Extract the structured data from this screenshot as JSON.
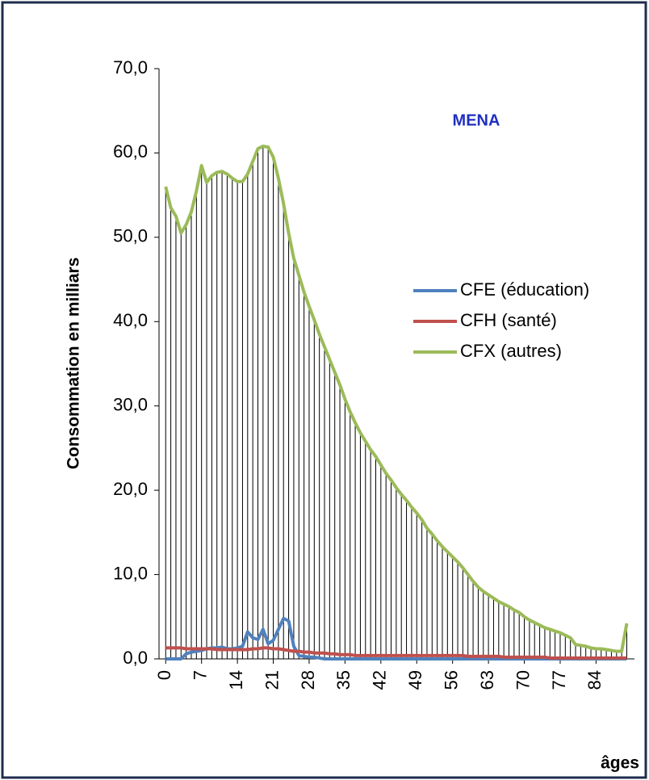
{
  "chart_data": {
    "type": "line",
    "title": "MENA",
    "y_label": "Consommation en milliars",
    "x_label": "âges",
    "x": [
      0,
      1,
      2,
      3,
      4,
      5,
      6,
      7,
      8,
      9,
      10,
      11,
      12,
      13,
      14,
      15,
      16,
      17,
      18,
      19,
      20,
      21,
      22,
      23,
      24,
      25,
      26,
      27,
      28,
      29,
      30,
      31,
      32,
      33,
      34,
      35,
      36,
      37,
      38,
      39,
      40,
      41,
      42,
      43,
      44,
      45,
      46,
      47,
      48,
      49,
      50,
      51,
      52,
      53,
      54,
      55,
      56,
      57,
      58,
      59,
      60,
      61,
      62,
      63,
      64,
      65,
      66,
      67,
      68,
      69,
      70,
      71,
      72,
      73,
      74,
      75,
      76,
      77,
      78,
      79,
      80,
      81,
      82,
      83,
      84,
      85,
      86,
      87,
      88,
      89,
      90
    ],
    "xlim": [
      -1.3,
      91.5
    ],
    "xticks": [
      0,
      7,
      14,
      21,
      28,
      35,
      42,
      49,
      56,
      63,
      70,
      77,
      84
    ],
    "ylim": [
      0,
      70
    ],
    "yticks": [
      {
        "value": 0,
        "label": "0,0"
      },
      {
        "value": 10,
        "label": "10,0"
      },
      {
        "value": 20,
        "label": "20,0"
      },
      {
        "value": 30,
        "label": "30,0"
      },
      {
        "value": 40,
        "label": "40,0"
      },
      {
        "value": 50,
        "label": "50,0"
      },
      {
        "value": 60,
        "label": "60,0"
      },
      {
        "value": 70,
        "label": "70,0"
      }
    ],
    "drop_lines": true,
    "legend": "right",
    "series": [
      {
        "name": "CFE (éducation)",
        "color": "#4f81bd",
        "values": [
          0,
          0,
          0,
          0,
          0.6,
          0.8,
          0.9,
          1.0,
          1.2,
          1.3,
          1.3,
          1.4,
          1.2,
          1.2,
          1.3,
          1.5,
          3.2,
          2.5,
          2.3,
          3.5,
          1.8,
          2.2,
          3.5,
          4.8,
          4.5,
          1.5,
          0.4,
          0.3,
          0.2,
          0.2,
          0.1,
          0,
          0,
          0,
          0,
          0,
          0,
          0,
          0,
          0,
          0,
          0,
          0,
          0,
          0,
          0,
          0,
          0,
          0,
          0,
          0,
          0,
          0,
          0,
          0,
          0,
          0,
          0,
          0,
          0,
          0,
          0,
          0,
          0,
          0,
          0,
          0,
          0,
          0,
          0,
          0,
          0,
          0,
          0,
          0,
          0,
          0,
          0,
          0,
          0,
          0,
          0,
          0,
          0,
          0,
          0,
          0,
          0,
          0,
          0,
          0
        ]
      },
      {
        "name": "CFH (santé)",
        "color": "#c0504d",
        "values": [
          1.3,
          1.3,
          1.3,
          1.3,
          1.2,
          1.2,
          1.2,
          1.2,
          1.2,
          1.2,
          1.1,
          1.1,
          1.1,
          1.1,
          1.1,
          1.1,
          1.1,
          1.2,
          1.2,
          1.3,
          1.3,
          1.2,
          1.2,
          1.1,
          1.0,
          0.9,
          0.9,
          0.8,
          0.8,
          0.7,
          0.7,
          0.7,
          0.6,
          0.6,
          0.5,
          0.5,
          0.5,
          0.4,
          0.4,
          0.4,
          0.4,
          0.4,
          0.4,
          0.4,
          0.4,
          0.4,
          0.4,
          0.4,
          0.4,
          0.4,
          0.4,
          0.4,
          0.4,
          0.4,
          0.4,
          0.4,
          0.4,
          0.4,
          0.4,
          0.3,
          0.3,
          0.3,
          0.3,
          0.3,
          0.3,
          0.3,
          0.2,
          0.2,
          0.2,
          0.2,
          0.2,
          0.2,
          0.2,
          0.2,
          0.2,
          0.1,
          0.1,
          0.1,
          0.1,
          0.1,
          0.1,
          0.1,
          0.1,
          0.1,
          0.1,
          0.1,
          0.1,
          0.1,
          0.1,
          0.1,
          0.1
        ]
      },
      {
        "name": "CFX (autres)",
        "color": "#9bbb59",
        "values": [
          56,
          53.5,
          52.5,
          50.5,
          51.5,
          53,
          55.5,
          58.5,
          56.5,
          57.3,
          57.7,
          57.8,
          57.5,
          57,
          56.6,
          56.6,
          57.5,
          59,
          60.5,
          60.8,
          60.7,
          59.5,
          57,
          54,
          50.5,
          47.5,
          45.5,
          43.5,
          41.8,
          40.2,
          38.5,
          37,
          35.5,
          34,
          32.5,
          30.8,
          29.3,
          28,
          26.8,
          25.8,
          24.8,
          24,
          23,
          22,
          21.2,
          20.3,
          19.5,
          18.8,
          18,
          17.3,
          16.5,
          15.5,
          14.8,
          14,
          13.3,
          12.7,
          12.1,
          11.5,
          10.8,
          10,
          9.2,
          8.5,
          8,
          7.6,
          7.2,
          6.8,
          6.5,
          6.2,
          5.8,
          5.5,
          5.0,
          4.6,
          4.3,
          4.0,
          3.7,
          3.5,
          3.3,
          3.1,
          2.8,
          2.5,
          1.7,
          1.6,
          1.5,
          1.3,
          1.2,
          1.2,
          1.1,
          1.0,
          0.9,
          0.9,
          4.2
        ]
      }
    ]
  }
}
